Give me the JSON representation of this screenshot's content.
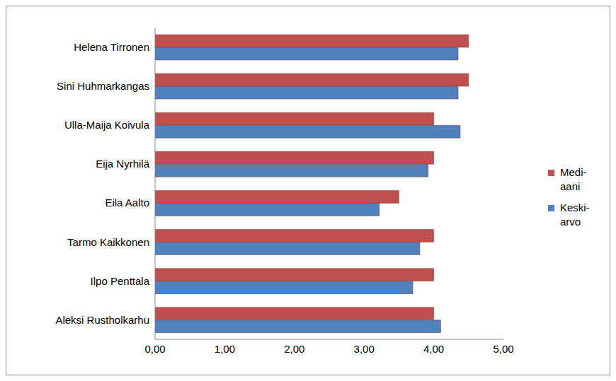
{
  "chart_data": {
    "type": "bar",
    "orientation": "horizontal",
    "categories": [
      "Helena Tirronen",
      "Sini Huhmarkangas",
      "Ulla-Maija Koivula",
      "Eija Nyrhilä",
      "Eila Aalto",
      "Tarmo Kaikkonen",
      "Ilpo Penttala",
      "Aleksi Rustholkarhu"
    ],
    "series": [
      {
        "name": "Medi-aani",
        "color": "#C0504D",
        "values": [
          4.5,
          4.5,
          4,
          4,
          3.5,
          4,
          4,
          4
        ]
      },
      {
        "name": "Keski-arvo",
        "color": "#4F81BD",
        "values": [
          4.35,
          4.35,
          4.38,
          3.92,
          3.22,
          3.8,
          3.7,
          4.1
        ]
      }
    ],
    "xlim": [
      0,
      5
    ],
    "xticks": [
      {
        "value": 0,
        "label": "0,00"
      },
      {
        "value": 1,
        "label": "1,00"
      },
      {
        "value": 2,
        "label": "2,00"
      },
      {
        "value": 3,
        "label": "3,00"
      },
      {
        "value": 4,
        "label": "4,00"
      },
      {
        "value": 5,
        "label": "5,00"
      }
    ],
    "grid": false,
    "legend": "right"
  }
}
